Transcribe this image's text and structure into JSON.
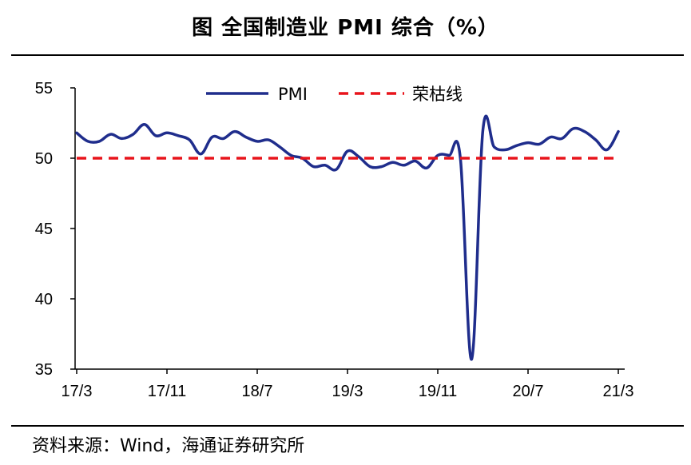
{
  "header": {
    "title": "图  全国制造业 PMI 综合（%）"
  },
  "footer": {
    "source": "资料来源：Wind，海通证券研究所"
  },
  "chart_data": {
    "type": "line",
    "title": "图  全国制造业 PMI 综合（%）",
    "xlabel": "",
    "ylabel": "",
    "ylim": [
      35,
      55
    ],
    "yticks": [
      "55",
      "50",
      "45",
      "40",
      "35"
    ],
    "xticks": [
      "17/3",
      "17/11",
      "18/7",
      "19/3",
      "19/11",
      "20/7",
      "21/3"
    ],
    "x": [
      "17/3",
      "17/4",
      "17/5",
      "17/6",
      "17/7",
      "17/8",
      "17/9",
      "17/10",
      "17/11",
      "17/12",
      "18/1",
      "18/2",
      "18/3",
      "18/4",
      "18/5",
      "18/6",
      "18/7",
      "18/8",
      "18/9",
      "18/10",
      "18/11",
      "18/12",
      "19/1",
      "19/2",
      "19/3",
      "19/4",
      "19/5",
      "19/6",
      "19/7",
      "19/8",
      "19/9",
      "19/10",
      "19/11",
      "19/12",
      "20/1",
      "20/2",
      "20/3",
      "20/4",
      "20/5",
      "20/6",
      "20/7",
      "20/8",
      "20/9",
      "20/10",
      "20/11",
      "20/12",
      "21/1",
      "21/2",
      "21/3"
    ],
    "series": [
      {
        "name": "PMI",
        "color": "#1f2d8c",
        "style": "solid",
        "values": [
          51.8,
          51.2,
          51.2,
          51.7,
          51.4,
          51.7,
          52.4,
          51.6,
          51.8,
          51.6,
          51.3,
          50.3,
          51.5,
          51.4,
          51.9,
          51.5,
          51.2,
          51.3,
          50.8,
          50.2,
          50.0,
          49.4,
          49.5,
          49.2,
          50.5,
          50.1,
          49.4,
          49.4,
          49.7,
          49.5,
          49.8,
          49.3,
          50.2,
          50.2,
          50.0,
          35.7,
          52.0,
          50.8,
          50.6,
          50.9,
          51.1,
          51.0,
          51.5,
          51.4,
          52.1,
          51.9,
          51.3,
          50.6,
          51.9
        ]
      },
      {
        "name": "荣枯线",
        "color": "#e8141b",
        "style": "dashed",
        "values": [
          50,
          50,
          50,
          50,
          50,
          50,
          50,
          50,
          50,
          50,
          50,
          50,
          50,
          50,
          50,
          50,
          50,
          50,
          50,
          50,
          50,
          50,
          50,
          50,
          50,
          50,
          50,
          50,
          50,
          50,
          50,
          50,
          50,
          50,
          50,
          50,
          50,
          50,
          50,
          50,
          50,
          50,
          50,
          50,
          50,
          50,
          50,
          50,
          50
        ]
      }
    ],
    "grid": false,
    "legend_position": "top-center"
  }
}
